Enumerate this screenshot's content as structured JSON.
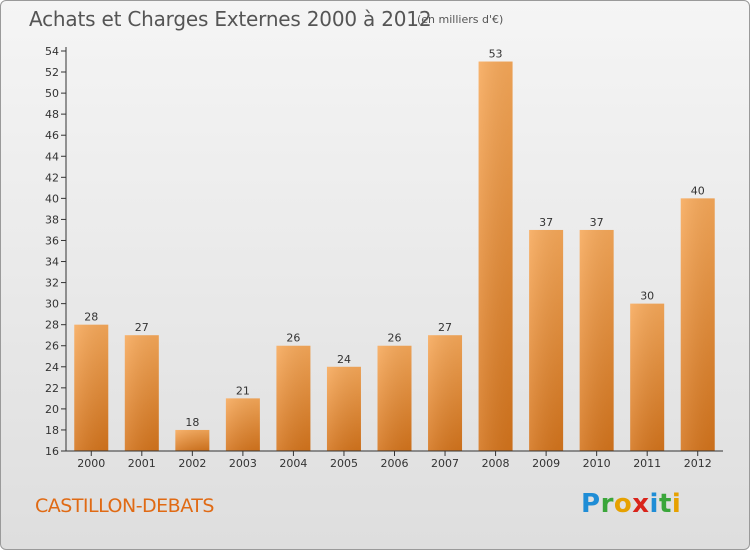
{
  "header": {
    "title": "Achats et Charges Externes 2000 à 2012",
    "unit": "(en milliers d'€)"
  },
  "footer": {
    "place": "CASTILLON-DEBATS",
    "brand_letters": [
      "P",
      "r",
      "o",
      "x",
      "i",
      "t",
      "i"
    ],
    "brand_colors": [
      "#1f8dd6",
      "#3aa63a",
      "#e6a100",
      "#d9241b",
      "#1f8dd6",
      "#3aa63a",
      "#e6a100"
    ]
  },
  "colors": {
    "bar_top": "#f7a95a",
    "bar_bottom": "#d4741c",
    "axis": "#333333",
    "label_text": "#333333"
  },
  "chart_data": {
    "type": "bar",
    "categories": [
      "2000",
      "2001",
      "2002",
      "2003",
      "2004",
      "2005",
      "2006",
      "2007",
      "2008",
      "2009",
      "2010",
      "2011",
      "2012"
    ],
    "values": [
      28,
      27,
      18,
      21,
      26,
      24,
      26,
      27,
      53,
      37,
      37,
      30,
      40
    ],
    "ylim": [
      16,
      54
    ],
    "yticks": [
      16,
      18,
      20,
      22,
      24,
      26,
      28,
      30,
      32,
      34,
      36,
      38,
      40,
      42,
      44,
      46,
      48,
      50,
      52,
      54
    ],
    "grid": false,
    "data_labels": true
  }
}
